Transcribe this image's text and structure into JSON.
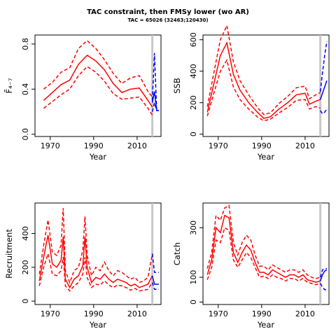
{
  "figure": {
    "title": "TAC constraint, then FMSy lower (wo AR)",
    "subtitle": "TAC = 65026 (32463;120430)"
  },
  "chart_data": [
    {
      "type": "line",
      "xlabel": "Year",
      "ylabel": "F̄₄₋₇",
      "xlim": [
        1963,
        2021
      ],
      "ylim": [
        -0.02,
        0.88
      ],
      "xticks": [
        "1970",
        "1990",
        "2010"
      ],
      "yticks": [
        "0.0",
        "0.4",
        "0.8"
      ],
      "vline_year": 2017,
      "historic_years": [
        1967,
        1971,
        1975,
        1979,
        1983,
        1987,
        1991,
        1995,
        1999,
        2003,
        2007,
        2011,
        2015,
        2017
      ],
      "historic_mid": [
        0.3,
        0.37,
        0.44,
        0.48,
        0.62,
        0.7,
        0.65,
        0.57,
        0.45,
        0.37,
        0.4,
        0.41,
        0.3,
        0.24
      ],
      "historic_low": [
        0.23,
        0.29,
        0.35,
        0.4,
        0.52,
        0.6,
        0.55,
        0.47,
        0.36,
        0.31,
        0.32,
        0.33,
        0.23,
        0.17
      ],
      "historic_high": [
        0.4,
        0.46,
        0.55,
        0.59,
        0.76,
        0.83,
        0.76,
        0.66,
        0.54,
        0.45,
        0.5,
        0.52,
        0.38,
        0.33
      ],
      "projection_years": [
        2017,
        2018,
        2019,
        2020
      ],
      "projection_mid": [
        0.28,
        0.38,
        0.21,
        0.21
      ],
      "projection_low": [
        0.2,
        0.28,
        0.21,
        0.21
      ],
      "projection_high": [
        0.3,
        0.72,
        0.21,
        0.21
      ]
    },
    {
      "type": "line",
      "xlabel": "Year",
      "ylabel": "SSB",
      "xlim": [
        1963,
        2021
      ],
      "ylim": [
        -15,
        630
      ],
      "xticks": [
        "1970",
        "1990",
        "2010"
      ],
      "yticks": [
        "0",
        "200",
        "400",
        "600"
      ],
      "vline_year": 2017,
      "historic_years": [
        1965,
        1968,
        1971,
        1974,
        1977,
        1980,
        1984,
        1988,
        1991,
        1994,
        1998,
        2002,
        2006,
        2010,
        2012,
        2015,
        2017
      ],
      "historic_mid": [
        140,
        320,
        500,
        580,
        380,
        280,
        200,
        140,
        100,
        110,
        160,
        200,
        250,
        260,
        190,
        210,
        220
      ],
      "historic_low": [
        115,
        260,
        400,
        470,
        300,
        220,
        160,
        110,
        85,
        95,
        135,
        170,
        215,
        220,
        160,
        175,
        165
      ],
      "historic_high": [
        175,
        390,
        600,
        690,
        460,
        340,
        250,
        170,
        125,
        135,
        195,
        240,
        295,
        305,
        225,
        250,
        265
      ],
      "projection_years": [
        2017,
        2018,
        2019,
        2020
      ],
      "projection_mid": [
        220,
        260,
        300,
        340
      ],
      "projection_low": [
        150,
        130,
        140,
        160
      ],
      "projection_high": [
        270,
        390,
        500,
        590
      ]
    },
    {
      "type": "line",
      "xlabel": "Year",
      "ylabel": "Recruitment",
      "xlim": [
        1963,
        2021
      ],
      "ylim": [
        -20,
        580
      ],
      "xticks": [
        "1970",
        "1990",
        "2010"
      ],
      "yticks": [
        "0",
        "200",
        "400"
      ],
      "vline_year": 2017,
      "historic_years": [
        1965,
        1967,
        1969,
        1971,
        1973,
        1975,
        1976,
        1977,
        1979,
        1981,
        1983,
        1985,
        1986,
        1987,
        1989,
        1991,
        1993,
        1995,
        1997,
        1999,
        2001,
        2003,
        2005,
        2007,
        2009,
        2011,
        2013,
        2015,
        2017
      ],
      "historic_mid": [
        120,
        260,
        390,
        220,
        200,
        240,
        380,
        130,
        80,
        130,
        150,
        210,
        380,
        200,
        110,
        140,
        130,
        160,
        130,
        110,
        130,
        120,
        110,
        90,
        100,
        80,
        90,
        100,
        150
      ],
      "historic_low": [
        90,
        200,
        280,
        160,
        150,
        180,
        260,
        90,
        60,
        90,
        110,
        160,
        260,
        140,
        80,
        100,
        95,
        120,
        95,
        80,
        95,
        90,
        80,
        65,
        75,
        60,
        65,
        70,
        110
      ],
      "historic_high": [
        160,
        330,
        480,
        290,
        270,
        330,
        550,
        180,
        110,
        180,
        200,
        300,
        500,
        270,
        150,
        200,
        180,
        230,
        180,
        150,
        180,
        170,
        150,
        130,
        140,
        110,
        120,
        140,
        280
      ],
      "projection_years": [
        2017,
        2018,
        2019,
        2020
      ],
      "projection_mid": [
        150,
        100,
        100,
        100
      ],
      "projection_low": [
        110,
        70,
        70,
        70
      ],
      "projection_high": [
        280,
        170,
        170,
        170
      ]
    },
    {
      "type": "line",
      "xlabel": "Year",
      "ylabel": "Catch",
      "xlim": [
        1963,
        2021
      ],
      "ylim": [
        -10,
        400
      ],
      "xticks": [
        "1970",
        "1990",
        "2010"
      ],
      "yticks": [
        "0",
        "100",
        "300"
      ],
      "vline_year": 2017,
      "historic_years": [
        1965,
        1967,
        1969,
        1971,
        1973,
        1975,
        1977,
        1979,
        1981,
        1983,
        1985,
        1987,
        1989,
        1991,
        1993,
        1995,
        1997,
        1999,
        2001,
        2003,
        2005,
        2007,
        2009,
        2011,
        2013,
        2015,
        2017
      ],
      "historic_mid": [
        110,
        170,
        300,
        280,
        350,
        340,
        200,
        160,
        200,
        230,
        210,
        160,
        120,
        120,
        110,
        130,
        120,
        110,
        100,
        110,
        110,
        100,
        110,
        90,
        85,
        80,
        85
      ],
      "historic_low": [
        90,
        140,
        250,
        240,
        300,
        290,
        170,
        140,
        170,
        200,
        180,
        140,
        100,
        105,
        95,
        110,
        100,
        95,
        85,
        95,
        95,
        85,
        95,
        80,
        75,
        70,
        75
      ],
      "historic_high": [
        135,
        200,
        350,
        330,
        380,
        390,
        240,
        190,
        240,
        270,
        250,
        190,
        145,
        145,
        130,
        150,
        140,
        130,
        120,
        130,
        130,
        120,
        130,
        110,
        100,
        95,
        100
      ],
      "projection_years": [
        2017,
        2018,
        2019,
        2020
      ],
      "projection_mid": [
        85,
        110,
        125,
        130
      ],
      "projection_low": [
        75,
        60,
        50,
        50
      ],
      "projection_high": [
        100,
        130,
        135,
        135
      ]
    }
  ],
  "colors": {
    "historic": "#ff0000",
    "projection": "#0000ff",
    "vline": "#c8c8c8",
    "axis": "#000000"
  }
}
